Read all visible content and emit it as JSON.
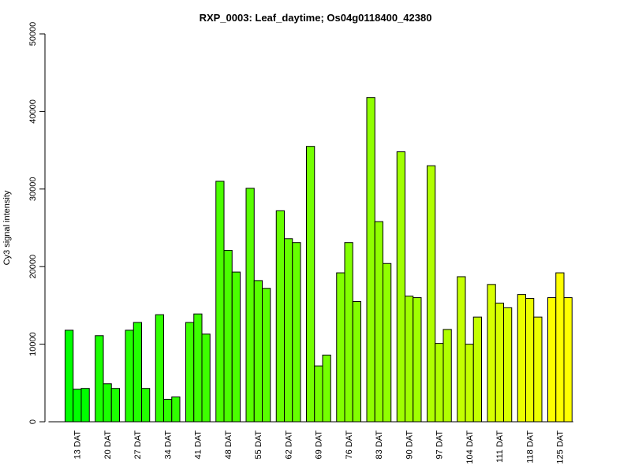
{
  "chart_data": {
    "type": "bar",
    "title": "RXP_0003: Leaf_daytime; Os04g0118400_42380",
    "xlabel": "",
    "ylabel": "Cy3 signal intensity",
    "ylim": [
      0,
      50000
    ],
    "yticks": [
      0,
      10000,
      20000,
      30000,
      40000,
      50000
    ],
    "ytick_labels": [
      "0",
      "10000",
      "20000",
      "30000",
      "40000",
      "50000"
    ],
    "grid": false,
    "categories": [
      "13 DAT",
      "20 DAT",
      "27 DAT",
      "34 DAT",
      "41 DAT",
      "48 DAT",
      "55 DAT",
      "62 DAT",
      "69 DAT",
      "76 DAT",
      "83 DAT",
      "90 DAT",
      "97 DAT",
      "104 DAT",
      "111 DAT",
      "118 DAT",
      "125 DAT"
    ],
    "colors": [
      "#00ff00",
      "#1aff00",
      "#22ff00",
      "#30ff00",
      "#3dff00",
      "#4aff00",
      "#58ff00",
      "#66ff00",
      "#74ff00",
      "#82ff00",
      "#90ff00",
      "#a0ff00",
      "#b0ff00",
      "#c4ff00",
      "#d8ff00",
      "#ecff00",
      "#ffff00"
    ],
    "values": [
      [
        11800,
        4200,
        4300
      ],
      [
        11100,
        4900,
        4300
      ],
      [
        11800,
        12800,
        4300
      ],
      [
        13800,
        2900,
        3200
      ],
      [
        12800,
        13900,
        11300
      ],
      [
        31000,
        22100,
        19300
      ],
      [
        30100,
        18200,
        17200
      ],
      [
        27200,
        23600,
        23100
      ],
      [
        35500,
        7200,
        8600
      ],
      [
        19200,
        23100,
        15500
      ],
      [
        41800,
        25800,
        20400
      ],
      [
        34800,
        16200,
        16000
      ],
      [
        33000,
        10100,
        11900
      ],
      [
        18700,
        10000,
        13500
      ],
      [
        17700,
        15300,
        14700
      ],
      [
        16400,
        15900,
        13500
      ],
      [
        16000,
        19200,
        16000
      ]
    ]
  }
}
